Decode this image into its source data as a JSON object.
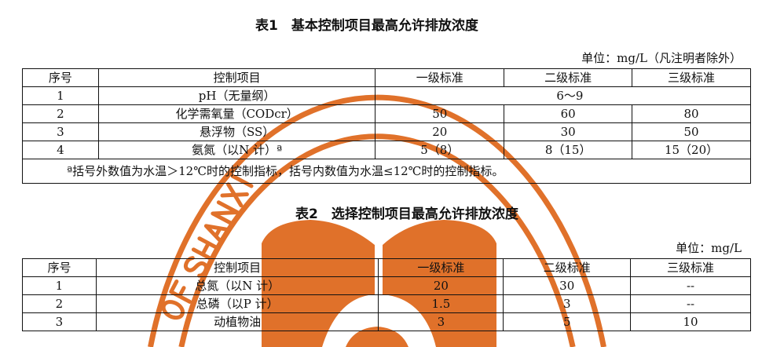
{
  "table1": {
    "title": "表1　基本控制项目最高允许排放浓度",
    "unit": "单位：mg/L（凡注明者除外）",
    "headers": [
      "序号",
      "控制项目",
      "一级标准",
      "二级标准",
      "三级标准"
    ],
    "rows": [
      {
        "no": "1",
        "item": "pH（无量纲）",
        "merged": "6～9"
      },
      {
        "no": "2",
        "item": "化学需氧量（CODcr）",
        "g1": "50",
        "g2": "60",
        "g3": "80"
      },
      {
        "no": "3",
        "item": "悬浮物（SS）",
        "g1": "20",
        "g2": "30",
        "g3": "50"
      },
      {
        "no": "4",
        "item": "氨氮（以N 计）ª",
        "g1": "5（8）",
        "g2": "8（15）",
        "g3": "15（20）"
      }
    ],
    "note": "ª括号外数值为水温＞12℃时的控制指标，括号内数值为水温≤12℃时的控制指标。"
  },
  "table2": {
    "title": "表2　选择控制项目最高允许排放浓度",
    "unit": "单位：mg/L",
    "headers": [
      "序号",
      "控制项目",
      "一级标准",
      "二级标准",
      "三级标准"
    ],
    "rows": [
      {
        "no": "1",
        "item": "总氮（以N 计）",
        "g1": "20",
        "g2": "30",
        "g3": "--"
      },
      {
        "no": "2",
        "item": "总磷（以P 计）",
        "g1": "1.5",
        "g2": "3",
        "g3": "--"
      },
      {
        "no": "3",
        "item": "动植物油",
        "g1": "3",
        "g2": "5",
        "g3": "10"
      }
    ]
  },
  "seal": {
    "text": "OF SHANXI",
    "color": "#e0712a"
  }
}
